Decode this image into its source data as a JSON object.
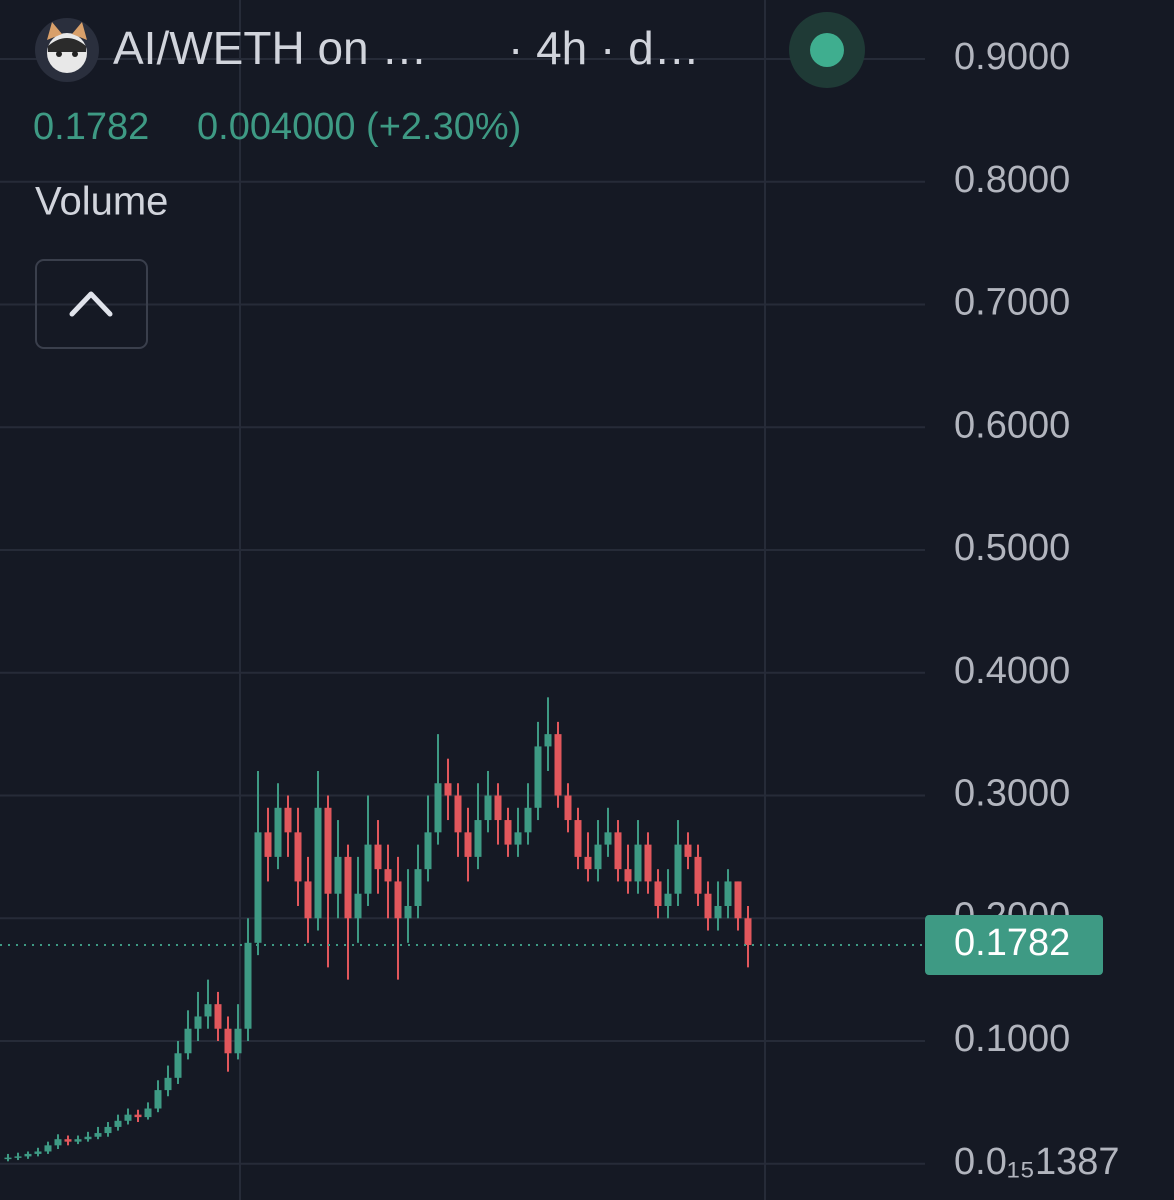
{
  "chart_data": {
    "type": "candlestick",
    "title": "AI/WETH on …",
    "subtitle": "· 4h · d…",
    "last_price": 0.1782,
    "change": "0.004000 (+2.30%)",
    "indicator": "Volume",
    "up_color": "#3e9a84",
    "down_color": "#e2575c",
    "grid": true,
    "ylim": [
      0,
      0.9481
    ],
    "yticks": [
      {
        "value": 1.387e-16,
        "label": "0.0₁₅1387"
      },
      {
        "value": 0.1,
        "label": "0.1000"
      },
      {
        "value": 0.2,
        "label": "0.2000"
      },
      {
        "value": 0.3,
        "label": "0.3000"
      },
      {
        "value": 0.4,
        "label": "0.4000"
      },
      {
        "value": 0.5,
        "label": "0.5000"
      },
      {
        "value": 0.6,
        "label": "0.6000"
      },
      {
        "value": 0.7,
        "label": "0.7000"
      },
      {
        "value": 0.8,
        "label": "0.8000"
      },
      {
        "value": 0.9,
        "label": "0.9000"
      }
    ],
    "open": [
      0.004,
      0.005,
      0.006,
      0.008,
      0.01,
      0.015,
      0.02,
      0.018,
      0.02,
      0.022,
      0.025,
      0.03,
      0.035,
      0.04,
      0.038,
      0.045,
      0.06,
      0.07,
      0.09,
      0.11,
      0.12,
      0.13,
      0.11,
      0.09,
      0.11,
      0.18,
      0.27,
      0.25,
      0.29,
      0.27,
      0.23,
      0.2,
      0.29,
      0.22,
      0.25,
      0.2,
      0.22,
      0.26,
      0.24,
      0.23,
      0.2,
      0.21,
      0.24,
      0.27,
      0.31,
      0.3,
      0.27,
      0.25,
      0.28,
      0.3,
      0.28,
      0.26,
      0.27,
      0.29,
      0.34,
      0.35,
      0.3,
      0.28,
      0.25,
      0.24,
      0.26,
      0.27,
      0.24,
      0.23,
      0.26,
      0.23,
      0.21,
      0.22,
      0.26,
      0.25,
      0.22,
      0.2,
      0.21,
      0.23,
      0.2
    ],
    "high": [
      0.008,
      0.009,
      0.01,
      0.013,
      0.018,
      0.024,
      0.023,
      0.023,
      0.026,
      0.03,
      0.034,
      0.04,
      0.045,
      0.044,
      0.05,
      0.068,
      0.08,
      0.1,
      0.125,
      0.14,
      0.15,
      0.14,
      0.12,
      0.13,
      0.2,
      0.32,
      0.29,
      0.31,
      0.3,
      0.29,
      0.25,
      0.32,
      0.3,
      0.28,
      0.26,
      0.25,
      0.3,
      0.28,
      0.26,
      0.25,
      0.24,
      0.26,
      0.3,
      0.35,
      0.33,
      0.31,
      0.29,
      0.31,
      0.32,
      0.31,
      0.29,
      0.29,
      0.31,
      0.36,
      0.38,
      0.36,
      0.31,
      0.29,
      0.27,
      0.28,
      0.29,
      0.28,
      0.26,
      0.28,
      0.27,
      0.24,
      0.24,
      0.28,
      0.27,
      0.26,
      0.23,
      0.23,
      0.24,
      0.23,
      0.21
    ],
    "low": [
      0.002,
      0.003,
      0.004,
      0.006,
      0.008,
      0.012,
      0.015,
      0.016,
      0.018,
      0.02,
      0.022,
      0.027,
      0.032,
      0.034,
      0.036,
      0.042,
      0.055,
      0.065,
      0.085,
      0.1,
      0.11,
      0.1,
      0.075,
      0.085,
      0.1,
      0.17,
      0.23,
      0.24,
      0.25,
      0.21,
      0.18,
      0.19,
      0.16,
      0.2,
      0.15,
      0.18,
      0.21,
      0.22,
      0.2,
      0.15,
      0.18,
      0.2,
      0.23,
      0.26,
      0.28,
      0.25,
      0.23,
      0.24,
      0.27,
      0.26,
      0.25,
      0.25,
      0.26,
      0.28,
      0.32,
      0.29,
      0.27,
      0.24,
      0.23,
      0.23,
      0.25,
      0.23,
      0.22,
      0.22,
      0.22,
      0.2,
      0.2,
      0.21,
      0.24,
      0.21,
      0.19,
      0.19,
      0.2,
      0.19,
      0.16
    ],
    "close": [
      0.005,
      0.006,
      0.008,
      0.01,
      0.015,
      0.02,
      0.018,
      0.02,
      0.022,
      0.025,
      0.03,
      0.035,
      0.04,
      0.038,
      0.045,
      0.06,
      0.07,
      0.09,
      0.11,
      0.12,
      0.13,
      0.11,
      0.09,
      0.11,
      0.18,
      0.27,
      0.25,
      0.29,
      0.27,
      0.23,
      0.2,
      0.29,
      0.22,
      0.25,
      0.2,
      0.22,
      0.26,
      0.24,
      0.23,
      0.2,
      0.21,
      0.24,
      0.27,
      0.31,
      0.3,
      0.27,
      0.25,
      0.28,
      0.3,
      0.28,
      0.26,
      0.27,
      0.29,
      0.34,
      0.35,
      0.3,
      0.28,
      0.25,
      0.24,
      0.26,
      0.27,
      0.24,
      0.23,
      0.26,
      0.23,
      0.21,
      0.22,
      0.26,
      0.25,
      0.22,
      0.2,
      0.21,
      0.23,
      0.2,
      0.1782
    ]
  }
}
